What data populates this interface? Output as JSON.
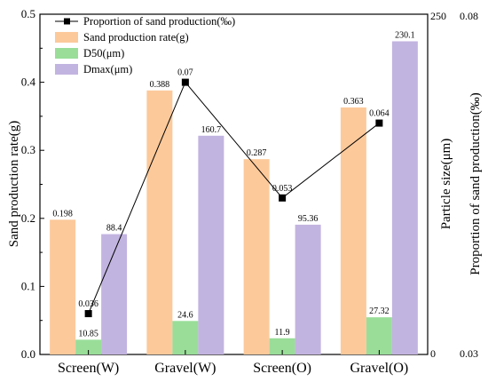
{
  "chart_data": {
    "type": "bar",
    "categories": [
      "Screen(W)",
      "Gravel(W)",
      "Screen(O)",
      "Gravel(O)"
    ],
    "bar_series": [
      {
        "name": "Sand production rate(g)",
        "axis": "left",
        "values": [
          0.198,
          0.388,
          0.287,
          0.363
        ],
        "labels": [
          "0.198",
          "0.388",
          "0.287",
          "0.363"
        ],
        "color": "#fcc99b"
      },
      {
        "name": "D50(μm)",
        "axis": "right1",
        "values": [
          10.85,
          24.6,
          11.9,
          27.32
        ],
        "labels": [
          "10.85",
          "24.6",
          "11.9",
          "27.32"
        ],
        "color": "#99dd99"
      },
      {
        "name": "Dmax(μm)",
        "axis": "right1",
        "values": [
          88.4,
          160.7,
          95.36,
          230.1
        ],
        "labels": [
          "88.4",
          "160.7",
          "95.36",
          "230.1"
        ],
        "color": "#c2b4e0"
      }
    ],
    "line_series": {
      "name": "Proportion of sand production(‰)",
      "axis": "right2",
      "values": [
        0.036,
        0.07,
        0.053,
        0.064
      ],
      "labels": [
        "0.036",
        "0.07",
        "0.053",
        "0.064"
      ],
      "color": "#000000"
    },
    "axes": {
      "left": {
        "label": "Sand production rate(g)",
        "ylim": [
          0,
          0.5
        ],
        "ticks": [
          "0.0",
          "0.1",
          "0.2",
          "0.3",
          "0.4",
          "0.5"
        ]
      },
      "right1": {
        "label": "Particle size(μm)",
        "ylim": [
          0,
          250
        ],
        "ticks": [
          "0",
          "250"
        ]
      },
      "right2": {
        "label": "Proportion of sand production(‰)",
        "ylim": [
          0.03,
          0.08
        ],
        "ticks": [
          "0.03",
          "0.08"
        ]
      }
    },
    "legend_position": "top-left",
    "grid": false
  }
}
